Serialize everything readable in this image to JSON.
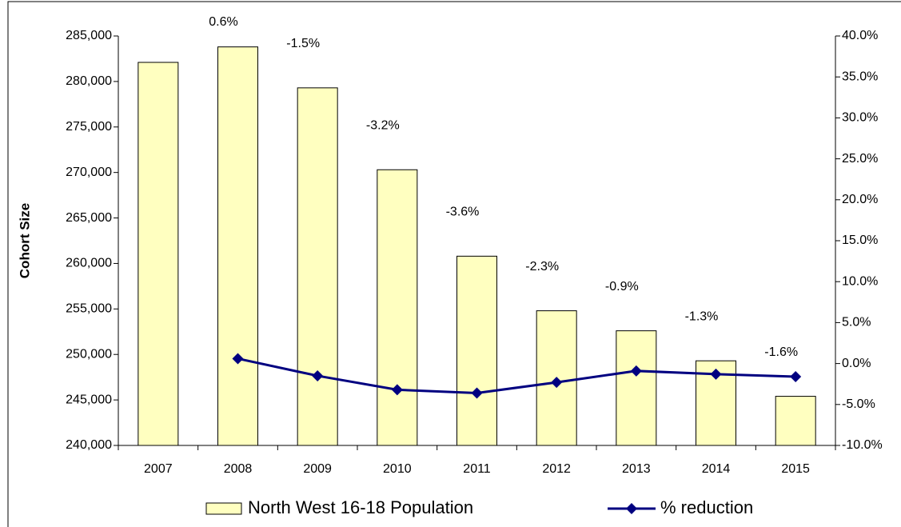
{
  "chart_data": {
    "type": "bar-line",
    "y_label": "Cohort Size",
    "categories": [
      "2007",
      "2008",
      "2009",
      "2010",
      "2011",
      "2012",
      "2013",
      "2014",
      "2015"
    ],
    "series": [
      {
        "name": "North West 16-18 Population",
        "type": "bar",
        "color": "#ffffc0",
        "values": [
          282100,
          283800,
          279300,
          270300,
          260800,
          254800,
          252600,
          249300,
          245400
        ]
      },
      {
        "name": "% reduction",
        "type": "line",
        "axis": "y2",
        "color": "#000080",
        "values": [
          null,
          0.6,
          -1.5,
          -3.2,
          -3.6,
          -2.3,
          -0.9,
          -1.3,
          -1.6
        ],
        "value_labels": [
          null,
          "0.6%",
          "-1.5%",
          "-3.2%",
          "-3.6%",
          "-2.3%",
          "-0.9%",
          "-1.3%",
          "-1.6%"
        ]
      }
    ],
    "ylim": [
      240000,
      285000
    ],
    "yticks": [
      {
        "value": 240000,
        "label": "240,000"
      },
      {
        "value": 245000,
        "label": "245,000"
      },
      {
        "value": 250000,
        "label": "250,000"
      },
      {
        "value": 255000,
        "label": "255,000"
      },
      {
        "value": 260000,
        "label": "260,000"
      },
      {
        "value": 265000,
        "label": "265,000"
      },
      {
        "value": 270000,
        "label": "270,000"
      },
      {
        "value": 275000,
        "label": "275,000"
      },
      {
        "value": 280000,
        "label": "280,000"
      },
      {
        "value": 285000,
        "label": "285,000"
      }
    ],
    "y2lim": [
      -10,
      40
    ],
    "y2ticks": [
      {
        "value": -10,
        "label": "-10.0%"
      },
      {
        "value": -5,
        "label": "-5.0%"
      },
      {
        "value": 0,
        "label": "0.0%"
      },
      {
        "value": 5,
        "label": "5.0%"
      },
      {
        "value": 10,
        "label": "10.0%"
      },
      {
        "value": 15,
        "label": "15.0%"
      },
      {
        "value": 20,
        "label": "20.0%"
      },
      {
        "value": 25,
        "label": "25.0%"
      },
      {
        "value": 30,
        "label": "30.0%"
      },
      {
        "value": 35,
        "label": "35.0%"
      },
      {
        "value": 40,
        "label": "40.0%"
      }
    ],
    "legend": "bottom"
  }
}
